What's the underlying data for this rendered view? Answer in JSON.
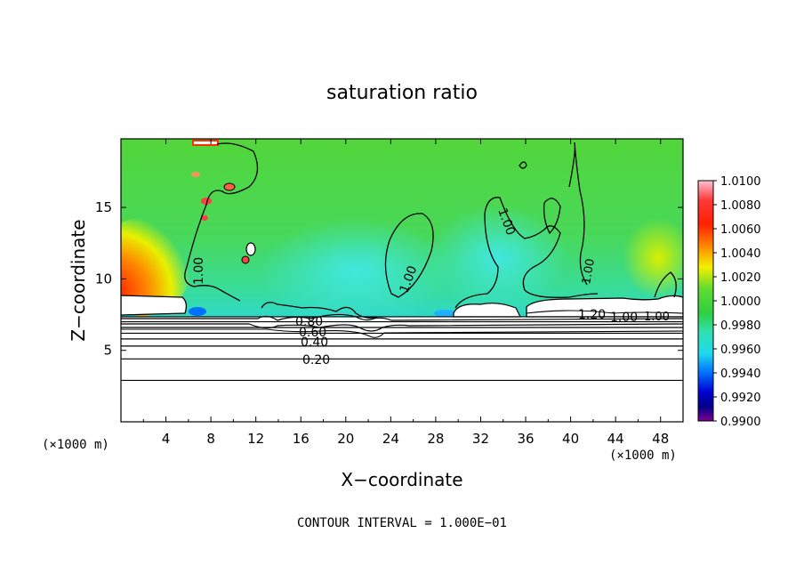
{
  "chart_data": {
    "type": "heatmap",
    "title": "saturation ratio",
    "xlabel": "X−coordinate",
    "ylabel": "Z−coordinate",
    "x_unit_left": "(×1000 m)",
    "x_unit_right": "(×1000 m)",
    "x_ticks": [
      4,
      8,
      12,
      16,
      20,
      24,
      28,
      32,
      36,
      40,
      44,
      48
    ],
    "y_ticks": [
      5,
      10,
      15
    ],
    "xlim": [
      0,
      50
    ],
    "ylim": [
      0,
      19.8
    ],
    "footer": "CONTOUR INTERVAL = 1.000E−01",
    "colorbar": {
      "labels": [
        "1.0100",
        "1.0080",
        "1.0060",
        "1.0040",
        "1.0020",
        "1.0000",
        "0.9980",
        "0.9960",
        "0.9940",
        "0.9920",
        "0.9900"
      ],
      "range": [
        0.99,
        1.01
      ],
      "colors": [
        "#ffb0c0",
        "#ff3030",
        "#ff0000",
        "#ff8000",
        "#ffd000",
        "#f0f000",
        "#70e030",
        "#30d030",
        "#30e0a0",
        "#30e0e0",
        "#00b0ff",
        "#0060ff",
        "#0000e0",
        "#000090",
        "#500080",
        "#800090"
      ]
    },
    "contour_labels": [
      "1.00",
      "1.00",
      "1.00",
      "1.00",
      "1.00",
      "1.20",
      "1.00",
      "0.80",
      "0.60",
      "0.40",
      "0.20"
    ],
    "contours": [
      {
        "z": 2.9
      },
      {
        "z": 4.4
      },
      {
        "z": 5.3
      },
      {
        "z": 5.8
      },
      {
        "z": 6.2
      },
      {
        "z": 6.6
      },
      {
        "z": 7.0
      },
      {
        "z": 7.35
      }
    ]
  }
}
